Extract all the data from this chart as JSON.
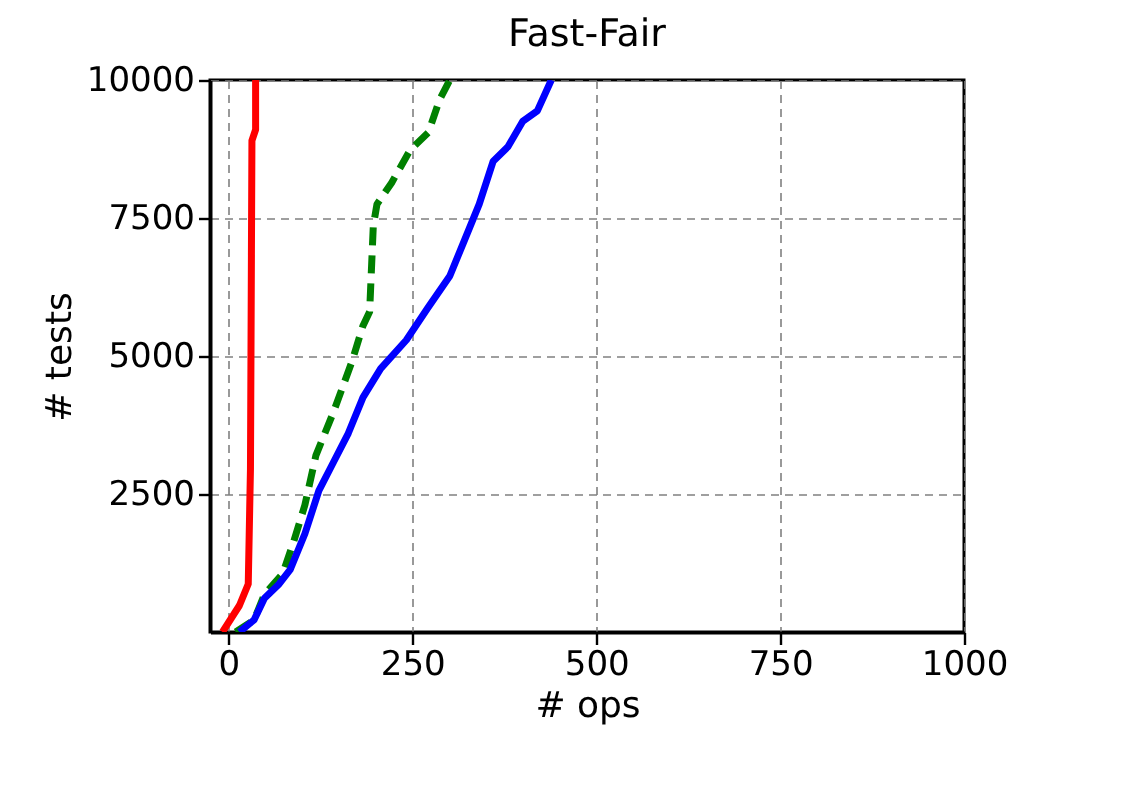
{
  "chart_data": {
    "type": "line",
    "title": "Fast-Fair",
    "xlabel": "# ops",
    "ylabel": "# tests",
    "xlim": [
      -25,
      1000
    ],
    "xticks": [
      0,
      250,
      500,
      750,
      1000
    ],
    "ylim": [
      0,
      10000
    ],
    "yticks": [
      2500,
      5000,
      7500,
      10000
    ],
    "grid": true,
    "marker": "none",
    "series": [
      {
        "color": "#ff0000",
        "line_style": "solid",
        "x": [
          -8,
          15,
          27,
          30,
          32,
          37,
          37
        ],
        "values": [
          0,
          480,
          870,
          2950,
          8900,
          9100,
          10000
        ]
      },
      {
        "color": "#008000",
        "line_style": "dashed",
        "x": [
          10,
          35,
          49,
          74,
          89,
          104,
          119,
          143,
          168,
          183,
          192,
          197,
          202,
          222,
          247,
          272,
          287,
          301
        ],
        "values": [
          0,
          220,
          680,
          1060,
          1650,
          2300,
          3200,
          3990,
          4900,
          5550,
          5800,
          7360,
          7750,
          8140,
          8730,
          9050,
          9640,
          10000
        ]
      },
      {
        "color": "#0000ff",
        "line_style": "solid",
        "x": [
          15,
          35,
          49,
          69,
          84,
          104,
          123,
          143,
          163,
          183,
          207,
          242,
          271,
          301,
          321,
          341,
          360,
          380,
          400,
          420,
          439
        ],
        "values": [
          0,
          220,
          610,
          870,
          1130,
          1780,
          2560,
          3080,
          3600,
          4250,
          4770,
          5290,
          5870,
          6450,
          7100,
          7750,
          8530,
          8790,
          9250,
          9440,
          10000
        ]
      }
    ]
  }
}
